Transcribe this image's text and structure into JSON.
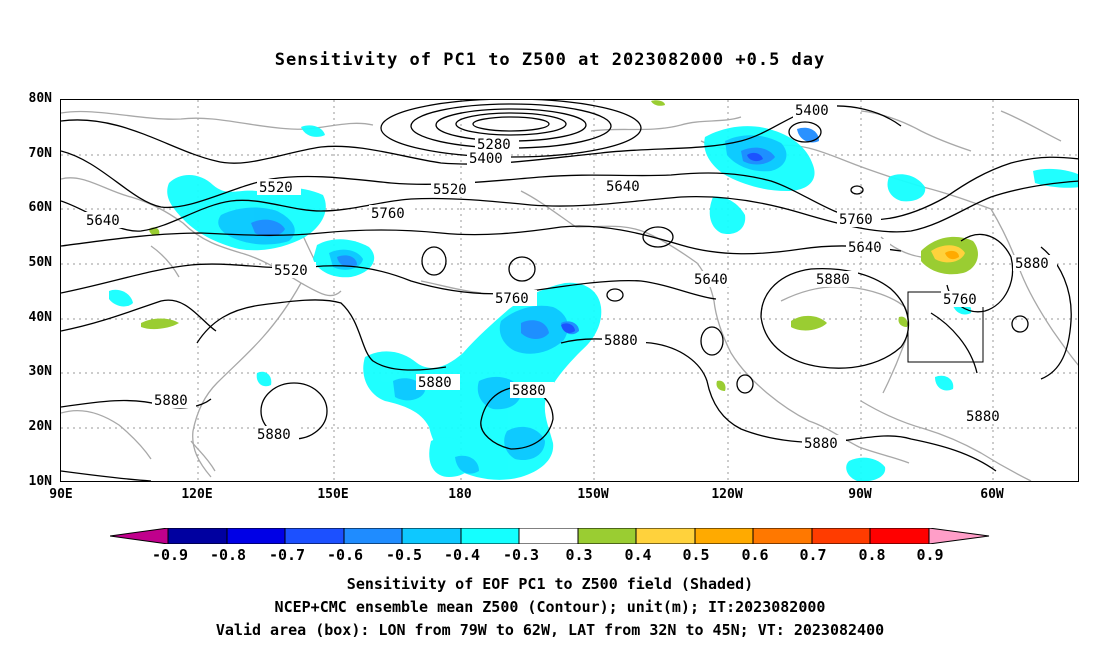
{
  "title": "Sensitivity of PC1 to Z500 at 2023082000 +0.5 day",
  "axes": {
    "y_ticks": [
      "80N",
      "70N",
      "60N",
      "50N",
      "40N",
      "30N",
      "20N",
      "10N"
    ],
    "x_ticks": [
      "90E",
      "120E",
      "150E",
      "180",
      "150W",
      "120W",
      "90W",
      "60W"
    ]
  },
  "contour_labels": [
    "5400",
    "5280",
    "5400",
    "5520",
    "5640",
    "5520",
    "5640",
    "5760",
    "5760",
    "5640",
    "5520",
    "5640",
    "5760",
    "5760",
    "5880",
    "5880",
    "5880",
    "5880",
    "5880",
    "5880",
    "5880",
    "5880",
    "5880"
  ],
  "colorbar": {
    "labels": [
      "-0.9",
      "-0.8",
      "-0.7",
      "-0.6",
      "-0.5",
      "-0.4",
      "-0.3",
      "0.3",
      "0.4",
      "0.5",
      "0.6",
      "0.7",
      "0.8",
      "0.9"
    ],
    "colors": [
      "#c0008c",
      "#0000a0",
      "#0000e6",
      "#1c50ff",
      "#1f8cff",
      "#0ec8ff",
      "#14ffff",
      "#ffffff",
      "#9acd32",
      "#ffd23c",
      "#ffaa00",
      "#ff7800",
      "#ff3c00",
      "#ff0000",
      "#ff9ec8"
    ]
  },
  "captions": [
    "Sensitivity of EOF PC1 to Z500 field (Shaded)",
    "NCEP+CMC ensemble mean Z500 (Contour); unit(m); IT:2023082000",
    "Valid area (box): LON from 79W to 62W, LAT from 32N to 45N; VT: 2023082400"
  ]
}
